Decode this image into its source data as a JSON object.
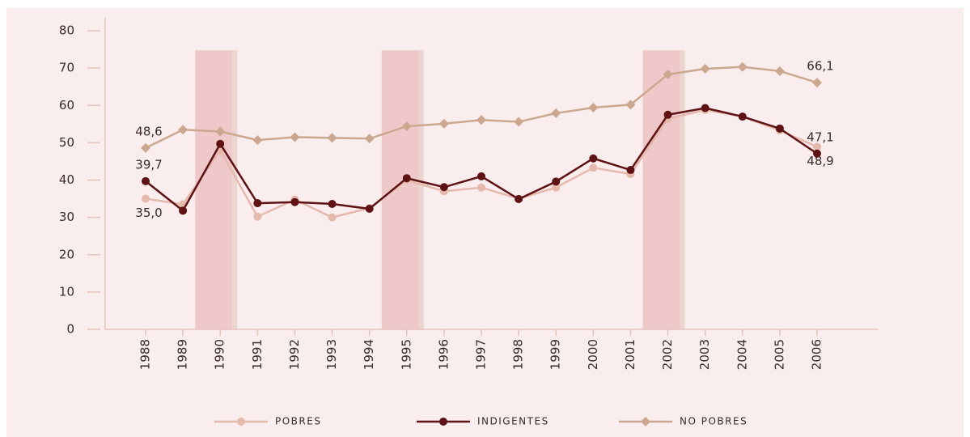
{
  "chart_data": {
    "type": "line",
    "categories": [
      "1988",
      "1989",
      "1990",
      "1991",
      "1992",
      "1993",
      "1994",
      "1995",
      "1996",
      "1997",
      "1998",
      "1999",
      "2000",
      "2001",
      "2002",
      "2003",
      "2004",
      "2005",
      "2006"
    ],
    "highlight_categories": [
      "1990",
      "1995",
      "2002"
    ],
    "series": [
      {
        "name": "POBRES",
        "color": "#e6b9ad",
        "marker": "circle",
        "values": [
          35.0,
          33.5,
          48.0,
          30.2,
          34.8,
          30.0,
          32.5,
          40.0,
          37.0,
          38.0,
          35.0,
          38.0,
          43.3,
          41.6,
          56.4,
          58.8,
          57.0,
          53.3,
          48.9
        ],
        "value_labels": [
          "35,0",
          null,
          null,
          null,
          null,
          null,
          null,
          null,
          null,
          null,
          null,
          null,
          null,
          null,
          null,
          null,
          null,
          null,
          "48,9"
        ]
      },
      {
        "name": "INDIGENTES",
        "color": "#5e1214",
        "marker": "circle",
        "values": [
          39.7,
          31.8,
          49.7,
          33.8,
          34.1,
          33.6,
          32.3,
          40.5,
          38.1,
          41.0,
          34.9,
          39.6,
          45.8,
          42.7,
          57.5,
          59.3,
          57.0,
          53.8,
          47.1
        ],
        "value_labels": [
          "39,7",
          null,
          null,
          null,
          null,
          null,
          null,
          null,
          null,
          null,
          null,
          null,
          null,
          null,
          null,
          null,
          null,
          null,
          "47,1"
        ]
      },
      {
        "name": "NO POBRES",
        "color": "#cba78f",
        "marker": "diamond",
        "values": [
          48.6,
          53.5,
          53.0,
          50.7,
          51.5,
          51.3,
          51.1,
          54.4,
          55.1,
          56.1,
          55.6,
          57.9,
          59.4,
          60.2,
          68.3,
          69.8,
          70.3,
          69.2,
          66.1
        ],
        "value_labels": [
          "48,6",
          null,
          null,
          null,
          null,
          null,
          null,
          null,
          null,
          null,
          null,
          null,
          null,
          null,
          null,
          null,
          null,
          null,
          "66,1"
        ]
      }
    ],
    "ylim": [
      0,
      80
    ],
    "yticks": [
      0,
      10,
      20,
      30,
      40,
      50,
      60,
      70,
      80
    ]
  }
}
